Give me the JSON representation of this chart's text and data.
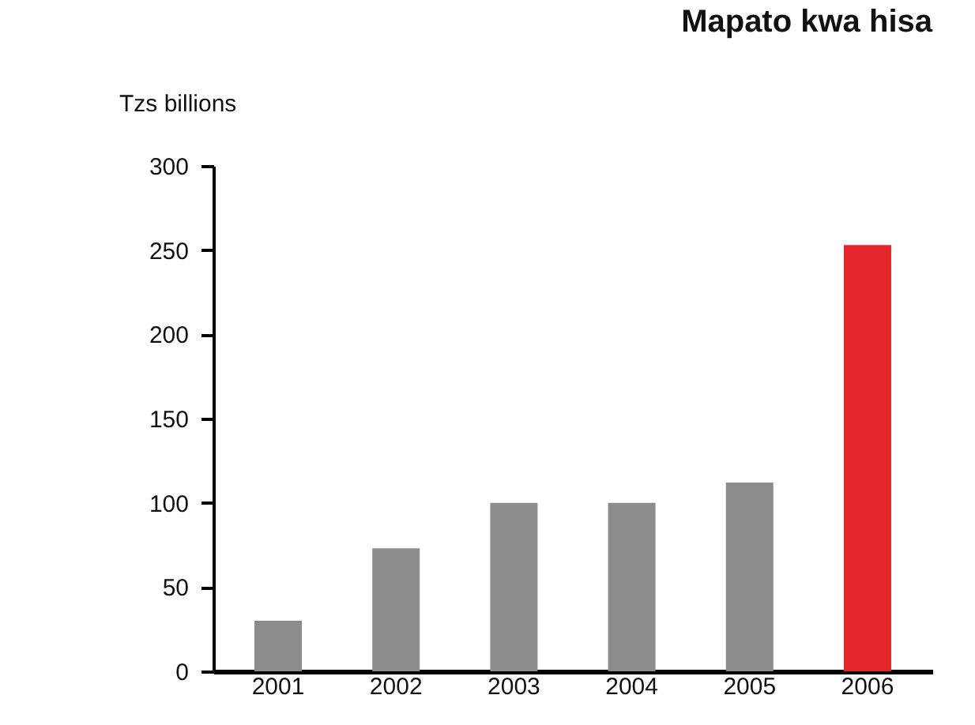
{
  "chart_data": {
    "type": "bar",
    "title": "Mapato kwa hisa",
    "ylabel": "Tzs billions",
    "categories": [
      "2001",
      "2002",
      "2003",
      "2004",
      "2005",
      "2006"
    ],
    "values": [
      30,
      73,
      100,
      100,
      112,
      253
    ],
    "colors": [
      "#8c8c8e",
      "#8c8c8e",
      "#8c8c8e",
      "#8c8c8e",
      "#8c8c8e",
      "#e3262a"
    ],
    "ylim": [
      0,
      300
    ],
    "yticks": [
      0,
      50,
      100,
      150,
      200,
      250,
      300
    ],
    "grid": false
  }
}
